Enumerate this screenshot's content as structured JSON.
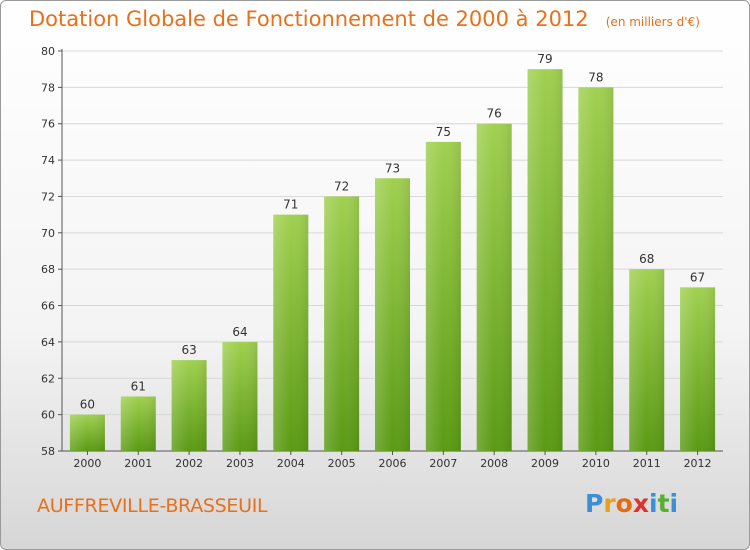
{
  "chart_data": {
    "type": "bar",
    "title": "Dotation Globale de Fonctionnement de 2000 à 2012",
    "unit_note": "(en milliers d'€)",
    "xlabel": "",
    "ylabel": "",
    "categories": [
      "2000",
      "2001",
      "2002",
      "2003",
      "2004",
      "2005",
      "2006",
      "2007",
      "2008",
      "2009",
      "2010",
      "2011",
      "2012"
    ],
    "values": [
      60,
      61,
      63,
      64,
      71,
      72,
      73,
      75,
      76,
      79,
      78,
      68,
      67
    ],
    "ylim": [
      58,
      80
    ],
    "yticks": [
      58,
      60,
      62,
      64,
      66,
      68,
      70,
      72,
      74,
      76,
      78,
      80
    ],
    "grid": true,
    "bar_color_top": "#a0d050",
    "bar_color_bottom": "#5a9a14",
    "data_labels": true
  },
  "footer": {
    "commune": "AUFFREVILLE-BRASSEUIL",
    "logo_letters": [
      "P",
      "r",
      "o",
      "x",
      "i",
      "t",
      "i"
    ],
    "logo_colors": [
      "#3a8fd8",
      "#e8a020",
      "#e86a10",
      "#e03030",
      "#3a8fd8",
      "#58b030",
      "#3a8fd8"
    ]
  },
  "colors": {
    "accent": "#e8701a",
    "grid": "#d8d8d8",
    "axis": "#555555"
  }
}
